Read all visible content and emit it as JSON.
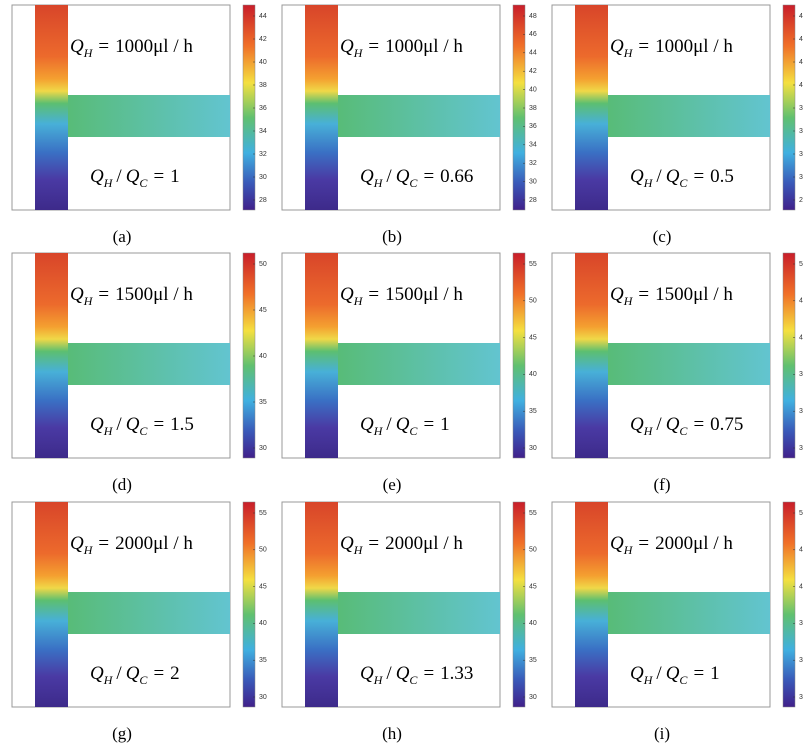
{
  "symbols": {
    "q": "Q",
    "h": "H",
    "c": "C",
    "eq": "=",
    "slash": "/"
  },
  "panels": [
    {
      "caption": "(a)",
      "flow_rate": "1000μl / h",
      "ratio": "1",
      "colorbar_ticks": [
        "44",
        "42",
        "40",
        "38",
        "36",
        "34",
        "32",
        "30",
        "28"
      ]
    },
    {
      "caption": "(b)",
      "flow_rate": "1000μl / h",
      "ratio": "0.66",
      "colorbar_ticks": [
        "48",
        "46",
        "44",
        "42",
        "40",
        "38",
        "36",
        "34",
        "32",
        "30",
        "28"
      ]
    },
    {
      "caption": "(c)",
      "flow_rate": "1000μl / h",
      "ratio": "0.5",
      "colorbar_ticks": [
        "4",
        "4",
        "4",
        "4",
        "3",
        "3",
        "3",
        "3",
        "2"
      ]
    },
    {
      "caption": "(d)",
      "flow_rate": "1500μl / h",
      "ratio": "1.5",
      "colorbar_ticks": [
        "50",
        "45",
        "40",
        "35",
        "30"
      ]
    },
    {
      "caption": "(e)",
      "flow_rate": "1500μl / h",
      "ratio": "1",
      "colorbar_ticks": [
        "55",
        "50",
        "45",
        "40",
        "35",
        "30"
      ]
    },
    {
      "caption": "(f)",
      "flow_rate": "1500μl / h",
      "ratio": "0.75",
      "colorbar_ticks": [
        "5",
        "4",
        "4",
        "3",
        "3",
        "3"
      ]
    },
    {
      "caption": "(g)",
      "flow_rate": "2000μl / h",
      "ratio": "2",
      "colorbar_ticks": [
        "55",
        "50",
        "45",
        "40",
        "35",
        "30"
      ]
    },
    {
      "caption": "(h)",
      "flow_rate": "2000μl / h",
      "ratio": "1.33",
      "colorbar_ticks": [
        "55",
        "50",
        "45",
        "40",
        "35",
        "30"
      ]
    },
    {
      "caption": "(i)",
      "flow_rate": "2000μl / h",
      "ratio": "1",
      "colorbar_ticks": [
        "5",
        "4",
        "4",
        "3",
        "3",
        "3"
      ]
    }
  ]
}
